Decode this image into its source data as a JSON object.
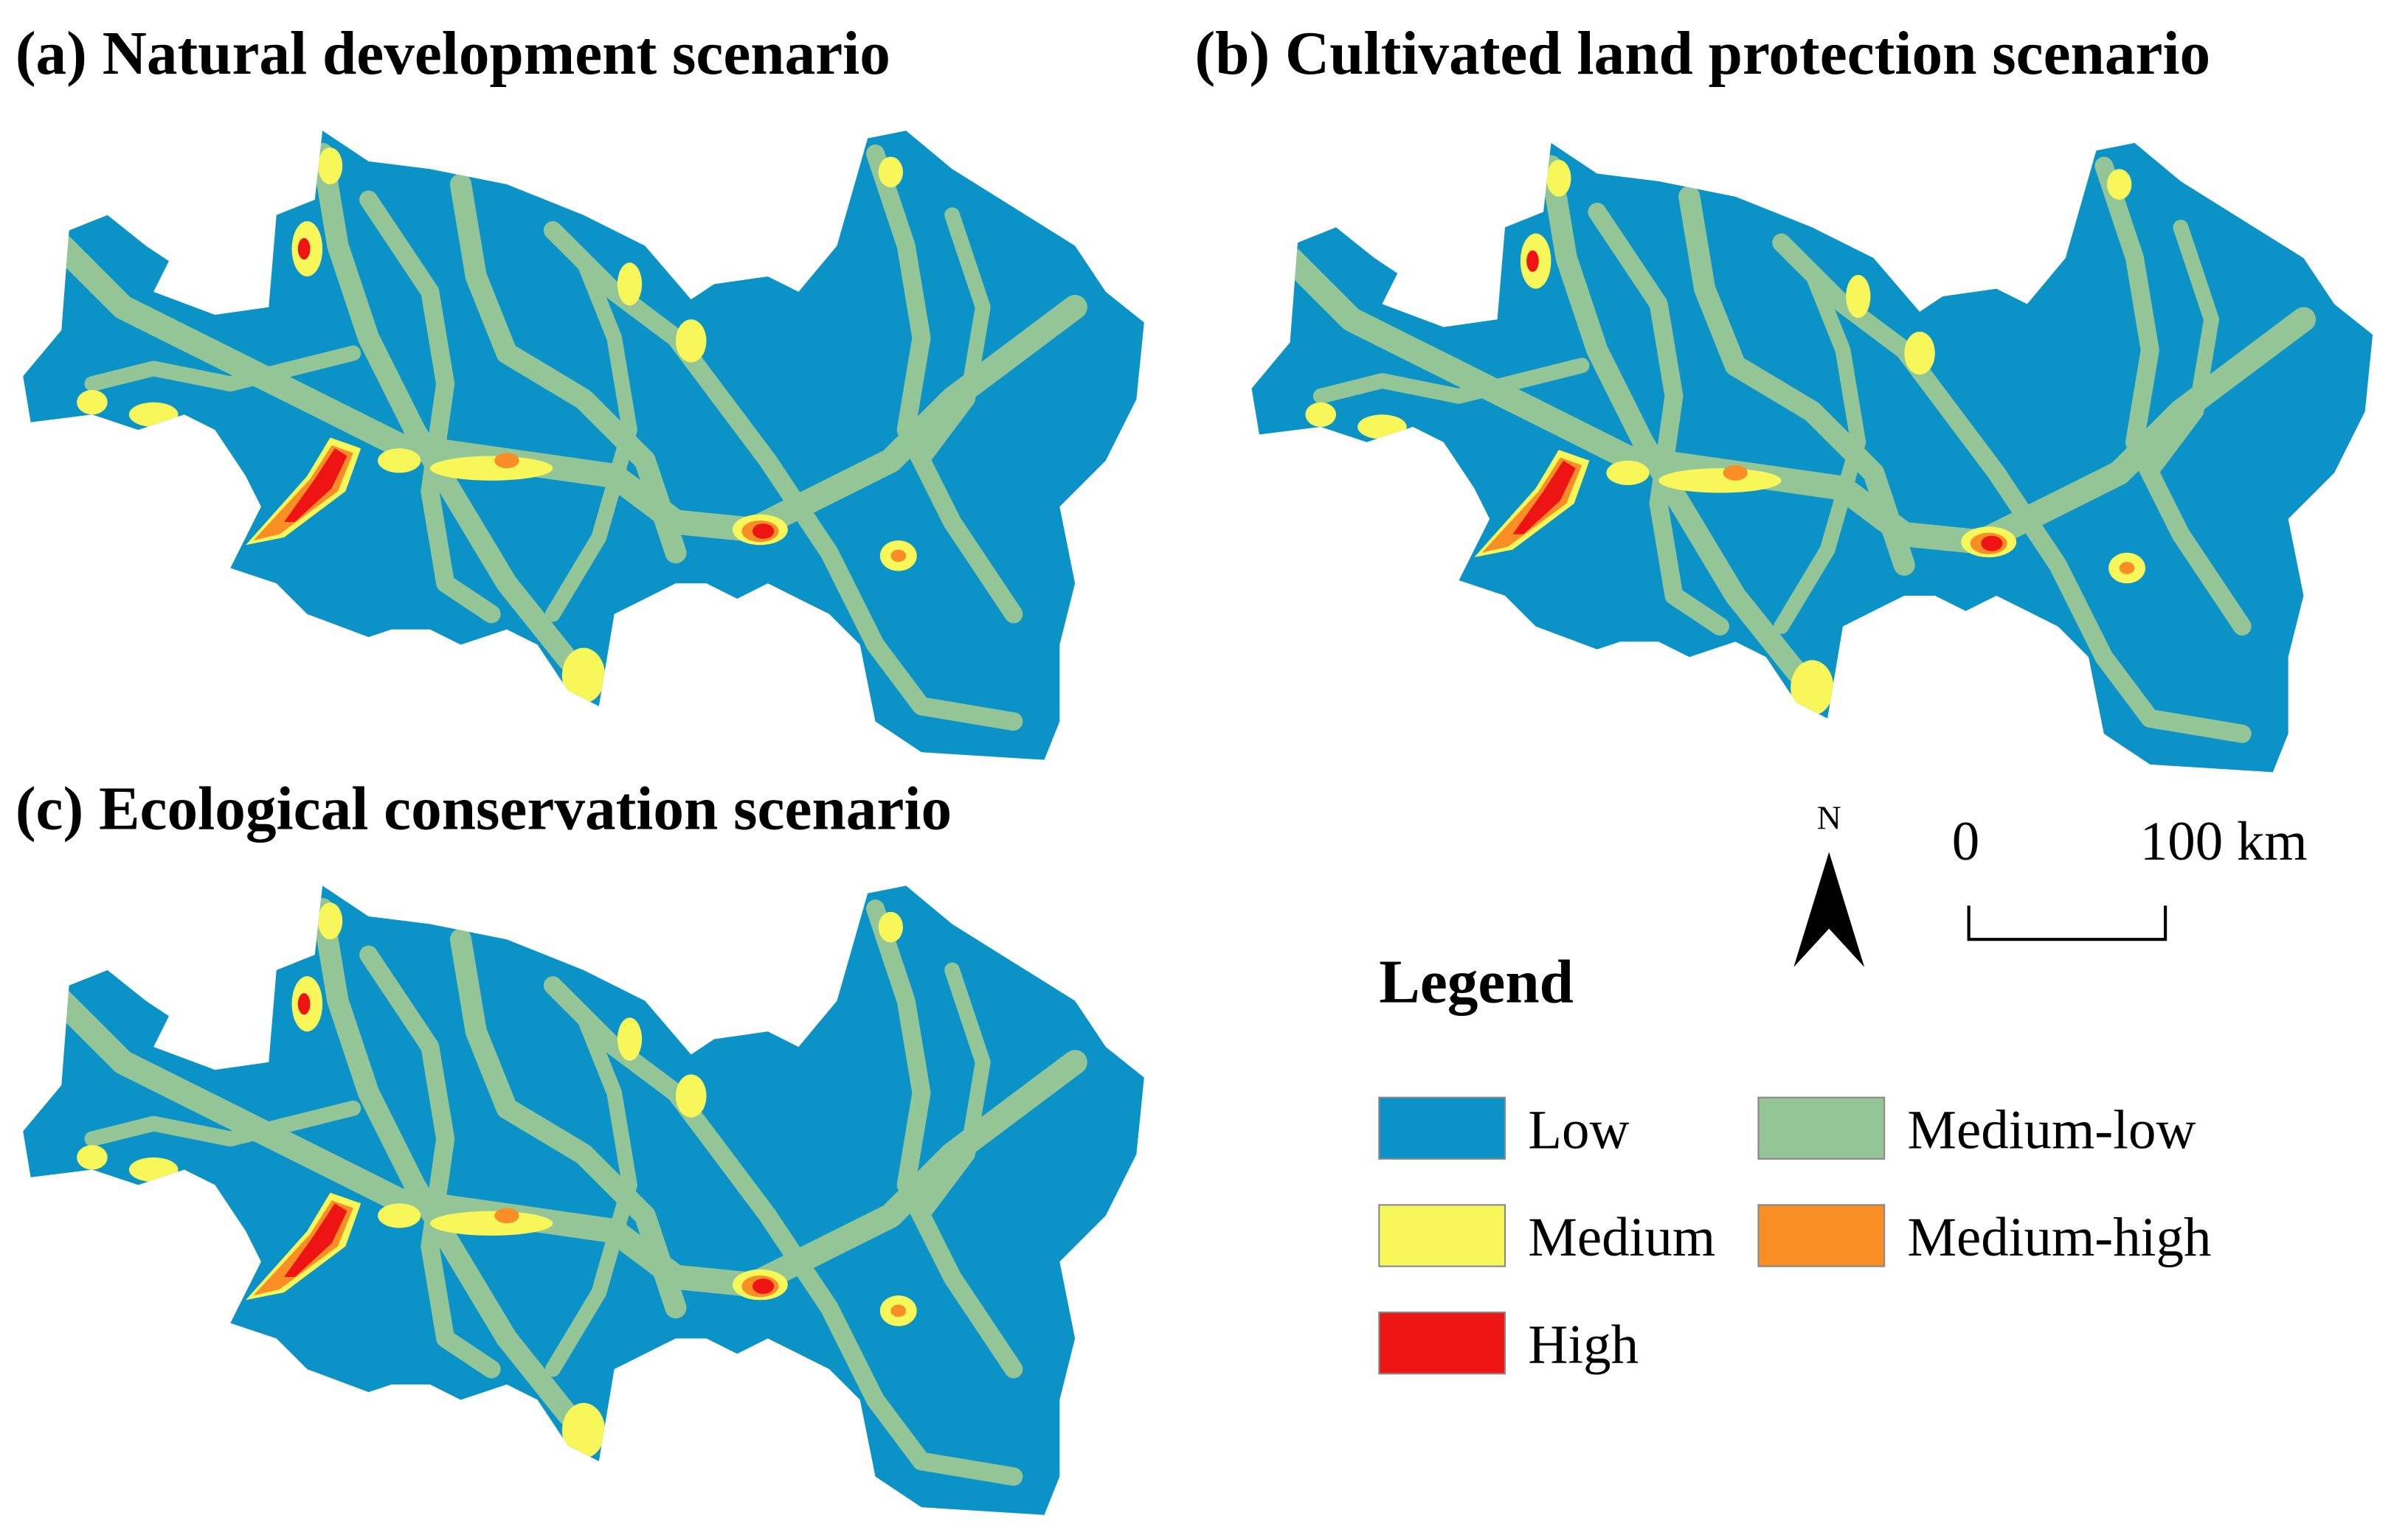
{
  "panels": [
    {
      "title": "(a) Natural development scenario"
    },
    {
      "title": "(b) Cultivated land protection scenario"
    },
    {
      "title": "(c) Ecological conservation scenario"
    }
  ],
  "north_arrow": {
    "label": "N"
  },
  "scale_bar": {
    "labels": [
      "0",
      "100 km"
    ]
  },
  "legend": {
    "title": "Legend",
    "items": [
      {
        "label": "Low",
        "color": "#0b93c8"
      },
      {
        "label": "Medium-low",
        "color": "#93c597"
      },
      {
        "label": "Medium",
        "color": "#f7f75a"
      },
      {
        "label": "Medium-high",
        "color": "#f98e24"
      },
      {
        "label": "High",
        "color": "#ee1414"
      }
    ]
  }
}
